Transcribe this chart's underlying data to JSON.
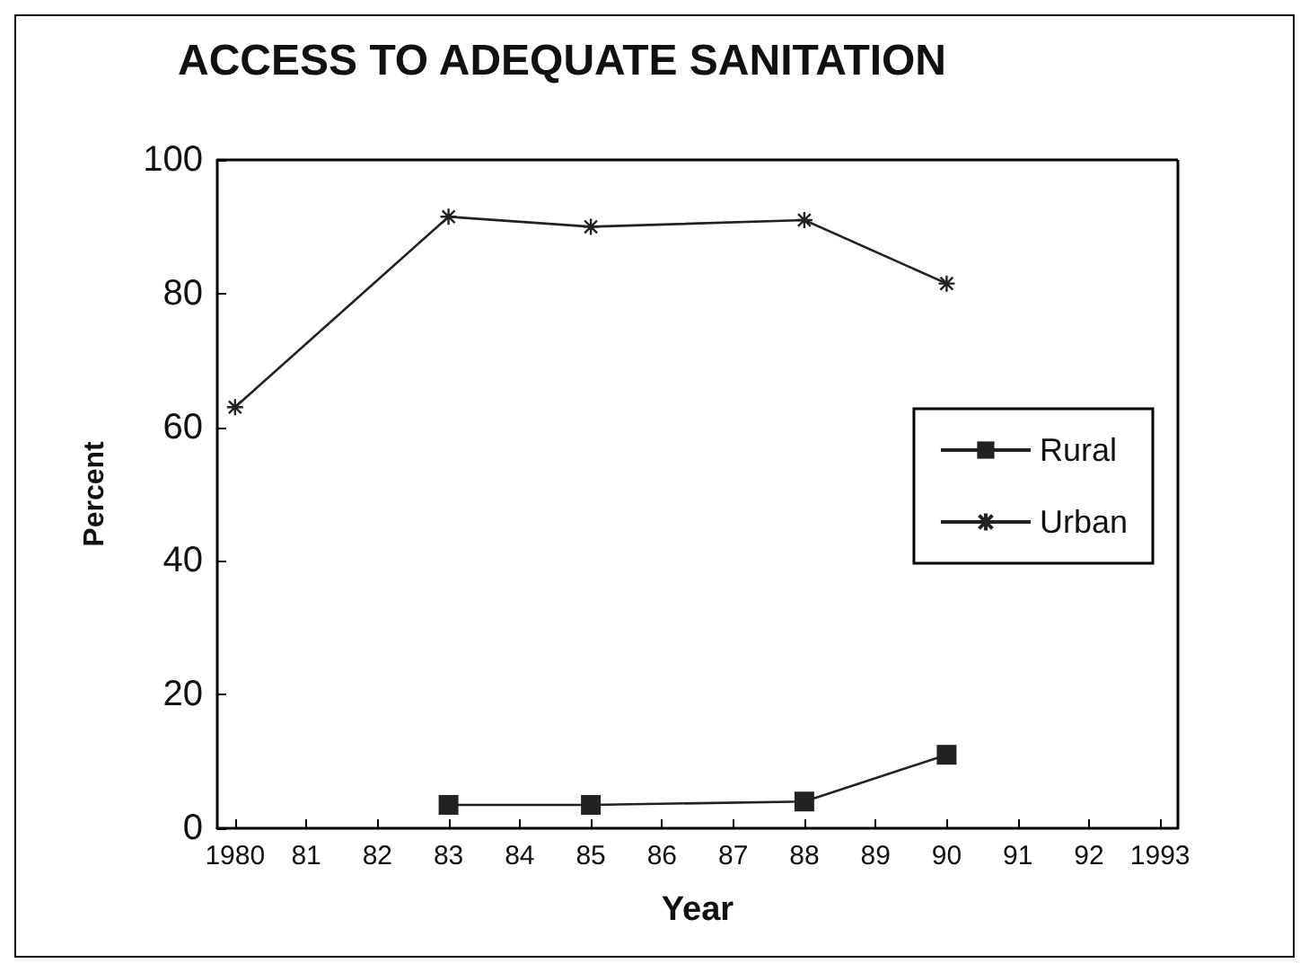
{
  "chart_data": {
    "type": "line",
    "title": "ACCESS TO ADEQUATE SANITATION",
    "xlabel": "Year",
    "ylabel": "Percent",
    "series": [
      {
        "name": "Rural",
        "color": "#222222",
        "marker": "square",
        "x": [
          1983,
          1985,
          1988,
          1990
        ],
        "values": [
          3.5,
          3.5,
          4,
          11
        ]
      },
      {
        "name": "Urban",
        "color": "#222222",
        "marker": "cross",
        "x": [
          1980,
          1983,
          1985,
          1988,
          1990
        ],
        "values": [
          63,
          91.5,
          90,
          91,
          81.5
        ]
      }
    ],
    "xlim": [
      1979.75,
      1993.25
    ],
    "xticks": [
      1980,
      {
        "value": 1981,
        "label": "81"
      },
      {
        "value": 1982,
        "label": "82"
      },
      {
        "value": 1983,
        "label": "83"
      },
      {
        "value": 1984,
        "label": "84"
      },
      {
        "value": 1985,
        "label": "85"
      },
      {
        "value": 1986,
        "label": "86"
      },
      {
        "value": 1987,
        "label": "87"
      },
      {
        "value": 1988,
        "label": "88"
      },
      {
        "value": 1989,
        "label": "89"
      },
      {
        "value": 1990,
        "label": "90"
      },
      {
        "value": 1991,
        "label": "91"
      },
      {
        "value": 1992,
        "label": "92"
      },
      1993
    ],
    "ylim": [
      0,
      100
    ],
    "yticks": [
      0,
      20,
      40,
      60,
      80,
      100
    ],
    "grid": false,
    "legend": "right",
    "line_style": "solid"
  }
}
